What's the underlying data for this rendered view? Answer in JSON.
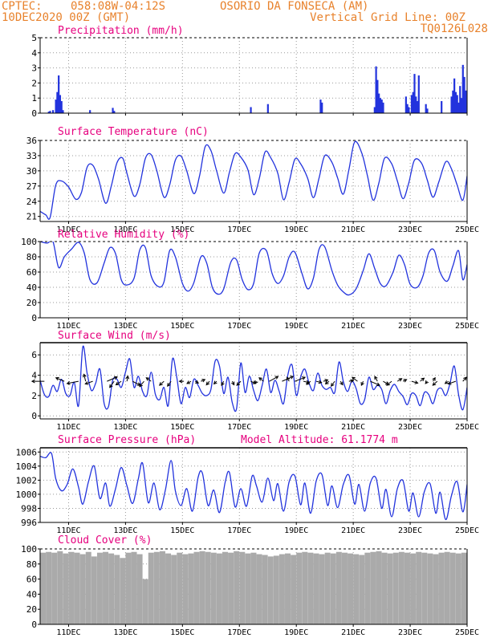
{
  "header": {
    "center": "CPTEC:",
    "coords": "058:08W-04:12S",
    "location": "OSORIO DA FONSECA (AM)",
    "run": "10DEC2020 00Z (GMT)",
    "grid_note": "Vertical Grid Line: 00Z",
    "model": "TQ0126L028"
  },
  "colors": {
    "header": "#e8822c",
    "title": "#e6007e",
    "series": "#2233dd",
    "cloud": "#aaaaaa",
    "frame": "#000000",
    "grid": "#999999"
  },
  "x_ticks": [
    "11DEC",
    "13DEC",
    "15DEC",
    "17DEC",
    "19DEC",
    "21DEC",
    "23DEC",
    "25DEC"
  ],
  "x_tick_days": [
    11,
    13,
    15,
    17,
    19,
    21,
    23,
    25
  ],
  "x_range": [
    10.0,
    25.0
  ],
  "chart_data": [
    {
      "id": "precipitation",
      "type": "bar",
      "title": "Precipitation (mm/h)",
      "ylim": [
        0,
        5
      ],
      "yticks": [
        0,
        1,
        2,
        3,
        4,
        5
      ],
      "x": [
        10.3,
        10.35,
        10.45,
        10.55,
        10.6,
        10.65,
        10.7,
        10.75,
        10.8,
        11.75,
        12.55,
        12.6,
        17.4,
        18.0,
        19.85,
        19.9,
        21.75,
        21.8,
        21.85,
        21.9,
        21.95,
        22.0,
        22.05,
        22.85,
        22.9,
        22.95,
        23.05,
        23.1,
        23.15,
        23.2,
        23.25,
        23.3,
        23.55,
        23.6,
        24.1,
        24.45,
        24.5,
        24.55,
        24.6,
        24.65,
        24.7,
        24.75,
        24.8,
        24.85,
        24.9,
        24.95
      ],
      "values": [
        0.1,
        0.15,
        0.2,
        0.9,
        1.4,
        2.5,
        1.2,
        0.8,
        0.2,
        0.2,
        0.35,
        0.15,
        0.4,
        0.6,
        0.9,
        0.7,
        0.4,
        3.1,
        2.2,
        1.3,
        1.0,
        0.9,
        0.7,
        1.1,
        0.6,
        0.4,
        1.2,
        1.4,
        2.6,
        1.1,
        0.8,
        2.5,
        0.6,
        0.3,
        0.8,
        1.1,
        1.5,
        2.3,
        1.4,
        1.2,
        0.7,
        1.8,
        1.0,
        3.2,
        2.4,
        1.5
      ]
    },
    {
      "id": "temperature",
      "type": "line",
      "title": "Surface Temperature (nC)",
      "ylim": [
        20,
        36
      ],
      "yticks": [
        21,
        24,
        27,
        30,
        33,
        36
      ],
      "x": [
        10.0,
        10.2,
        10.35,
        10.55,
        10.75,
        11.0,
        11.25,
        11.45,
        11.65,
        11.85,
        12.05,
        12.3,
        12.5,
        12.7,
        12.9,
        13.05,
        13.3,
        13.5,
        13.7,
        13.9,
        14.1,
        14.35,
        14.55,
        14.75,
        14.95,
        15.15,
        15.4,
        15.6,
        15.8,
        16.0,
        16.2,
        16.45,
        16.65,
        16.85,
        17.05,
        17.3,
        17.5,
        17.7,
        17.9,
        18.1,
        18.35,
        18.55,
        18.75,
        18.95,
        19.15,
        19.4,
        19.6,
        19.8,
        20.0,
        20.25,
        20.45,
        20.65,
        20.85,
        21.05,
        21.3,
        21.5,
        21.7,
        21.9,
        22.1,
        22.35,
        22.55,
        22.75,
        22.95,
        23.15,
        23.4,
        23.6,
        23.8,
        24.0,
        24.25,
        24.45,
        24.65,
        24.85,
        25.0
      ],
      "y": [
        22.0,
        21.3,
        20.8,
        27.2,
        28.0,
        26.8,
        24.4,
        25.7,
        30.7,
        31.1,
        28.4,
        23.6,
        27.0,
        31.6,
        32.5,
        29.5,
        25.0,
        27.3,
        32.5,
        33.2,
        30.0,
        24.8,
        27.2,
        32.1,
        32.9,
        30.0,
        25.5,
        29.0,
        34.8,
        34.0,
        30.0,
        25.6,
        29.7,
        33.4,
        32.7,
        30.2,
        25.3,
        28.5,
        33.7,
        32.6,
        29.5,
        24.3,
        27.8,
        32.3,
        31.4,
        28.5,
        24.7,
        28.6,
        33.0,
        31.7,
        28.6,
        25.4,
        30.3,
        35.7,
        33.5,
        29.0,
        24.2,
        27.6,
        32.5,
        31.4,
        28.0,
        24.5,
        27.6,
        32.1,
        31.5,
        28.2,
        24.8,
        27.7,
        31.8,
        30.4,
        27.2,
        24.2,
        29.0
      ]
    },
    {
      "id": "humidity",
      "type": "line",
      "title": "Relative Humidity (%)",
      "ylim": [
        0,
        100
      ],
      "yticks": [
        0,
        20,
        40,
        60,
        80,
        100
      ],
      "x": [
        10.0,
        10.25,
        10.45,
        10.65,
        10.85,
        11.1,
        11.35,
        11.55,
        11.75,
        12.0,
        12.25,
        12.45,
        12.65,
        12.85,
        13.05,
        13.3,
        13.5,
        13.7,
        13.9,
        14.15,
        14.35,
        14.55,
        14.75,
        15.0,
        15.2,
        15.4,
        15.65,
        15.85,
        16.05,
        16.25,
        16.45,
        16.7,
        16.9,
        17.1,
        17.3,
        17.5,
        17.7,
        17.95,
        18.15,
        18.35,
        18.55,
        18.75,
        18.95,
        19.2,
        19.4,
        19.6,
        19.8,
        20.0,
        20.25,
        20.45,
        20.65,
        20.85,
        21.1,
        21.35,
        21.55,
        21.75,
        21.95,
        22.15,
        22.4,
        22.6,
        22.8,
        23.0,
        23.25,
        23.45,
        23.65,
        23.85,
        24.05,
        24.3,
        24.5,
        24.7,
        24.85,
        25.0
      ],
      "y": [
        100,
        98,
        100,
        66,
        80,
        90,
        99,
        85,
        50,
        46,
        72,
        92,
        84,
        50,
        43,
        52,
        89,
        92,
        55,
        41,
        47,
        88,
        80,
        45,
        35,
        46,
        80,
        72,
        40,
        31,
        38,
        73,
        76,
        50,
        37,
        45,
        85,
        88,
        58,
        45,
        55,
        80,
        86,
        58,
        38,
        52,
        90,
        93,
        62,
        43,
        34,
        30,
        38,
        62,
        84,
        65,
        45,
        42,
        60,
        82,
        70,
        44,
        40,
        55,
        85,
        88,
        60,
        48,
        68,
        88,
        50,
        70
      ]
    },
    {
      "id": "wind",
      "type": "line",
      "title": "Surface Wind (m/s)",
      "ylim": [
        -0.3,
        7.2
      ],
      "yticks": [
        0,
        2,
        4,
        6
      ],
      "x": [
        10.0,
        10.15,
        10.3,
        10.45,
        10.6,
        10.75,
        10.9,
        11.05,
        11.2,
        11.35,
        11.5,
        11.65,
        11.8,
        11.95,
        12.1,
        12.25,
        12.4,
        12.55,
        12.7,
        12.85,
        13.0,
        13.15,
        13.3,
        13.45,
        13.6,
        13.75,
        13.9,
        14.05,
        14.2,
        14.35,
        14.5,
        14.65,
        14.8,
        14.95,
        15.1,
        15.25,
        15.4,
        15.55,
        15.7,
        15.85,
        16.0,
        16.15,
        16.3,
        16.45,
        16.6,
        16.75,
        16.9,
        17.05,
        17.2,
        17.35,
        17.5,
        17.65,
        17.8,
        17.95,
        18.1,
        18.25,
        18.4,
        18.55,
        18.7,
        18.85,
        19.0,
        19.15,
        19.3,
        19.45,
        19.6,
        19.75,
        19.9,
        20.05,
        20.2,
        20.35,
        20.5,
        20.65,
        20.8,
        20.95,
        21.1,
        21.25,
        21.4,
        21.55,
        21.7,
        21.85,
        22.0,
        22.15,
        22.3,
        22.45,
        22.6,
        22.75,
        22.9,
        23.05,
        23.2,
        23.35,
        23.5,
        23.65,
        23.8,
        23.95,
        24.1,
        24.25,
        24.4,
        24.55,
        24.7,
        24.85,
        25.0
      ],
      "y": [
        3.5,
        2.1,
        1.9,
        3.0,
        2.4,
        3.6,
        2.2,
        2.0,
        3.3,
        1.0,
        6.8,
        4.2,
        2.5,
        3.2,
        4.6,
        1.2,
        0.9,
        3.5,
        3.6,
        2.8,
        4.3,
        5.6,
        2.8,
        3.9,
        2.4,
        2.0,
        4.3,
        2.1,
        1.6,
        2.8,
        1.0,
        5.6,
        3.8,
        1.2,
        2.8,
        1.8,
        3.6,
        3.0,
        2.2,
        2.0,
        2.6,
        5.4,
        4.9,
        2.2,
        3.8,
        1.3,
        0.7,
        5.2,
        2.3,
        3.9,
        2.5,
        1.5,
        3.0,
        4.6,
        2.3,
        3.5,
        2.4,
        1.2,
        4.0,
        5.0,
        2.0,
        3.8,
        4.6,
        3.2,
        2.5,
        4.2,
        3.0,
        2.6,
        2.8,
        2.3,
        5.3,
        3.4,
        2.4,
        3.4,
        2.7,
        1.2,
        1.6,
        3.8,
        2.6,
        3.0,
        2.6,
        1.2,
        2.5,
        3.1,
        2.4,
        1.9,
        1.1,
        2.2,
        2.0,
        1.0,
        2.3,
        2.1,
        1.2,
        2.5,
        2.7,
        2.0,
        3.2,
        4.9,
        2.1,
        0.6,
        2.8
      ],
      "arrows_x": [
        10.15,
        10.85,
        11.35,
        11.6,
        11.85,
        12.35,
        12.6,
        12.85,
        13.05,
        13.25,
        13.65,
        13.9,
        14.35,
        14.6,
        15.05,
        15.3,
        15.45,
        15.65,
        15.95,
        16.2,
        16.45,
        16.75,
        17.05,
        17.4,
        17.6,
        17.85,
        18.05,
        18.5,
        18.75,
        18.95,
        19.25,
        19.5,
        19.7,
        19.95,
        20.15,
        20.35,
        20.55,
        20.85,
        21.15,
        21.35,
        21.6,
        21.85,
        22.05,
        22.35,
        22.55,
        22.75,
        23.05,
        23.35,
        23.6,
        23.8,
        23.95,
        24.35,
        24.6,
        24.85
      ],
      "arrows_u": [
        -2.8,
        -1.9,
        -2.6,
        -0.4,
        -1.7,
        2.3,
        -1.0,
        -1.2,
        0.2,
        1.7,
        -1.0,
        -1.1,
        -1.0,
        -0.8,
        -1.0,
        -0.9,
        0.7,
        0.9,
        -0.7,
        -0.6,
        -0.5,
        0.4,
        -0.9,
        1.1,
        -0.3,
        -1.0,
        2.0,
        2.5,
        -0.5,
        2.3,
        1.3,
        -0.9,
        1.2,
        1.0,
        -0.8,
        -0.8,
        0.5,
        1.0,
        -1.2,
        -0.4,
        2.1,
        -0.6,
        1.2,
        -1.1,
        1.0,
        0.8,
        1.4,
        0.9,
        -0.4,
        0.5,
        -1.0,
        -0.8,
        -1.7,
        0.8
      ],
      "arrows_v": [
        0.0,
        0.8,
        -0.5,
        1.6,
        -0.6,
        1.0,
        -1.4,
        -0.8,
        1.2,
        -0.9,
        -1.2,
        0.8,
        -0.9,
        -1.1,
        0.0,
        -0.5,
        -0.4,
        0.4,
        -0.8,
        -0.6,
        -0.9,
        -0.8,
        -0.9,
        -0.5,
        -0.5,
        0.8,
        1.1,
        1.1,
        0.9,
        0.9,
        -0.3,
        -0.7,
        -0.3,
        0.3,
        -0.6,
        -1.1,
        -0.8,
        0.2,
        0.9,
        -0.9,
        -0.9,
        1.1,
        -0.7,
        -0.9,
        0.6,
        0.4,
        -0.4,
        0.7,
        -0.5,
        0.8,
        -0.9,
        -0.5,
        -0.6,
        0.9
      ]
    },
    {
      "id": "pressure",
      "type": "line",
      "title": "Surface Pressure (hPa)",
      "annotation": "Model Altitude: 61.1774 m",
      "ylim": [
        996,
        1006.6
      ],
      "yticks": [
        996,
        998,
        1000,
        1002,
        1004,
        1006
      ],
      "x": [
        10.0,
        10.2,
        10.4,
        10.55,
        10.75,
        10.95,
        11.15,
        11.35,
        11.5,
        11.7,
        11.9,
        12.1,
        12.3,
        12.45,
        12.65,
        12.85,
        13.05,
        13.25,
        13.45,
        13.6,
        13.8,
        14.0,
        14.2,
        14.4,
        14.6,
        14.75,
        14.95,
        15.15,
        15.35,
        15.55,
        15.7,
        15.9,
        16.1,
        16.3,
        16.5,
        16.65,
        16.85,
        17.05,
        17.25,
        17.45,
        17.6,
        17.8,
        18.0,
        18.2,
        18.35,
        18.55,
        18.75,
        18.95,
        19.15,
        19.3,
        19.5,
        19.7,
        19.9,
        20.1,
        20.25,
        20.45,
        20.65,
        20.85,
        21.05,
        21.2,
        21.4,
        21.6,
        21.8,
        22.0,
        22.15,
        22.35,
        22.55,
        22.75,
        22.95,
        23.1,
        23.3,
        23.5,
        23.7,
        23.9,
        24.05,
        24.25,
        24.45,
        24.65,
        24.85,
        25.0
      ],
      "y": [
        1005.4,
        1005.2,
        1005.8,
        1002.2,
        1000.5,
        1001.4,
        1003.6,
        1001.0,
        998.6,
        1001.8,
        1004.0,
        999.4,
        1001.6,
        998.3,
        1000.8,
        1003.8,
        1001.2,
        998.7,
        1002.2,
        1004.4,
        998.8,
        1001.6,
        997.8,
        1000.6,
        1004.8,
        1000.5,
        998.4,
        1000.8,
        997.6,
        1002.4,
        1003.0,
        998.4,
        1000.6,
        997.4,
        1001.7,
        1003.1,
        998.2,
        1000.8,
        998.3,
        1002.6,
        1001.2,
        998.9,
        1002.3,
        999.1,
        1001.5,
        997.6,
        1001.8,
        1002.6,
        998.5,
        1001.6,
        997.3,
        1001.9,
        1002.8,
        998.4,
        1001.2,
        998.1,
        1001.4,
        1002.7,
        998.6,
        1001.4,
        997.6,
        1001.6,
        1002.3,
        998.0,
        1000.7,
        996.8,
        1000.8,
        1001.9,
        997.6,
        1000.2,
        996.8,
        1000.4,
        1001.5,
        997.3,
        1000.3,
        996.4,
        999.8,
        1001.8,
        997.5,
        1001.4
      ]
    },
    {
      "id": "cloud",
      "type": "bar",
      "title": "Cloud Cover (%)",
      "ylim": [
        0,
        100
      ],
      "yticks": [
        0,
        20,
        40,
        60,
        80,
        100
      ],
      "x_start": 10.0,
      "x_step": 0.2,
      "values": [
        95,
        96,
        95,
        97,
        94,
        96,
        95,
        93,
        96,
        90,
        95,
        96,
        94,
        92,
        88,
        95,
        96,
        93,
        60,
        95,
        96,
        97,
        94,
        92,
        95,
        93,
        94,
        96,
        97,
        96,
        95,
        94,
        96,
        95,
        97,
        96,
        94,
        95,
        93,
        92,
        90,
        91,
        93,
        94,
        92,
        95,
        96,
        95,
        94,
        93,
        95,
        94,
        96,
        95,
        94,
        93,
        92,
        95,
        96,
        97,
        95,
        94,
        95,
        96,
        95,
        94,
        96,
        95,
        94,
        93,
        95,
        96,
        95,
        94,
        95,
        96
      ]
    }
  ]
}
